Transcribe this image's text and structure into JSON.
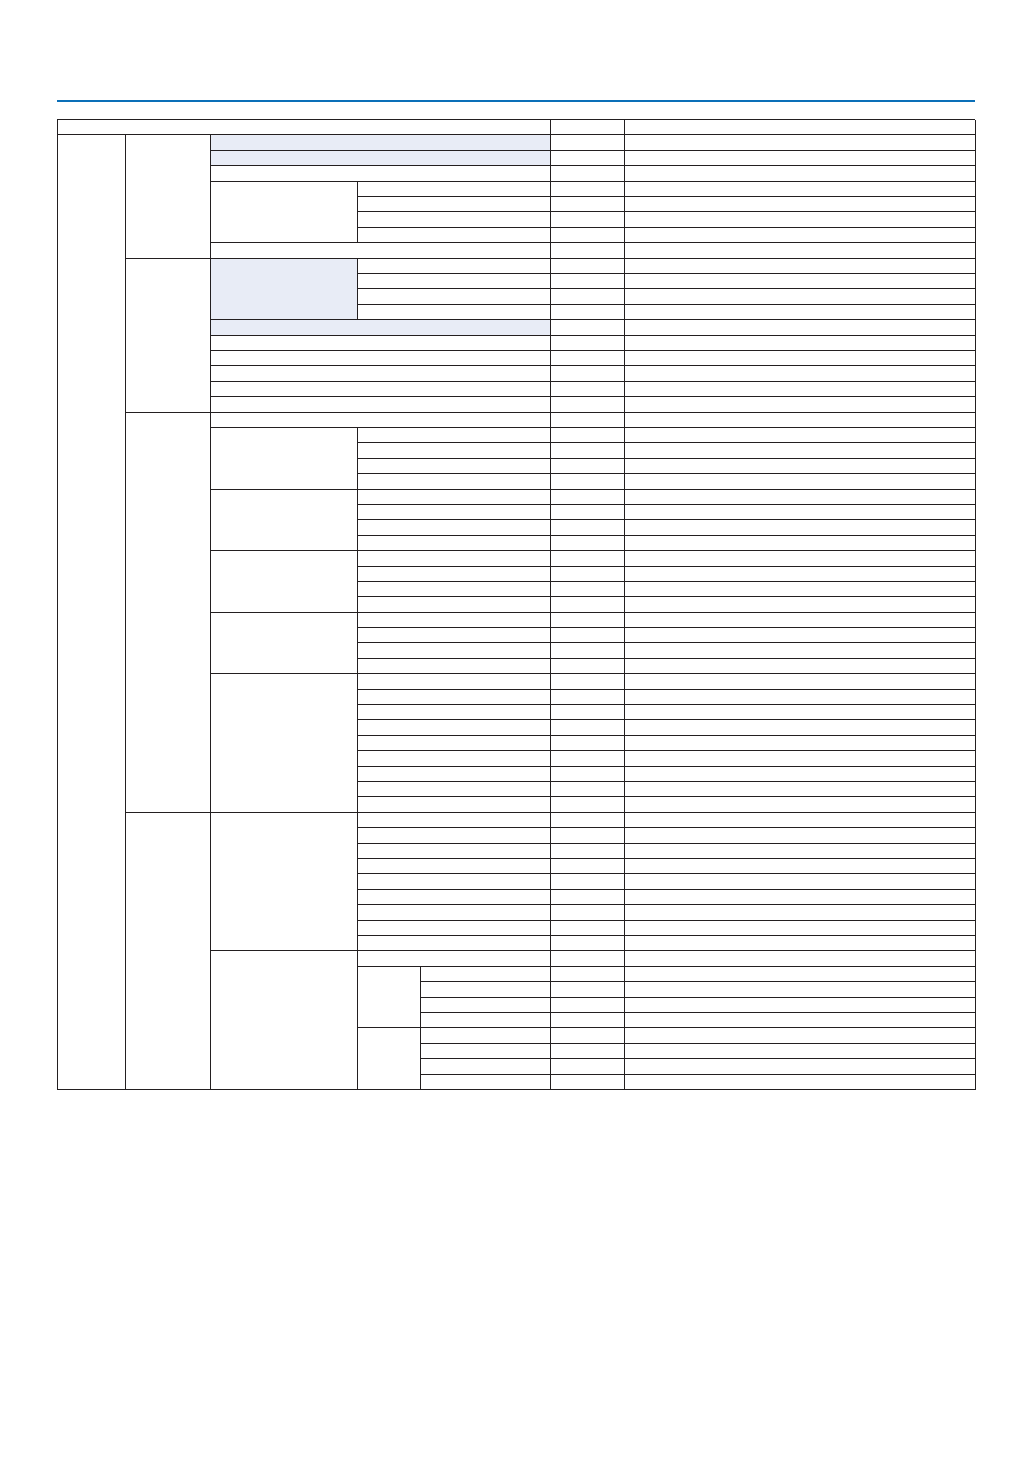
{
  "colors": {
    "rule": "#0a6fb8",
    "border": "#231f20",
    "shaded_cell": "#e8ecf6"
  }
}
